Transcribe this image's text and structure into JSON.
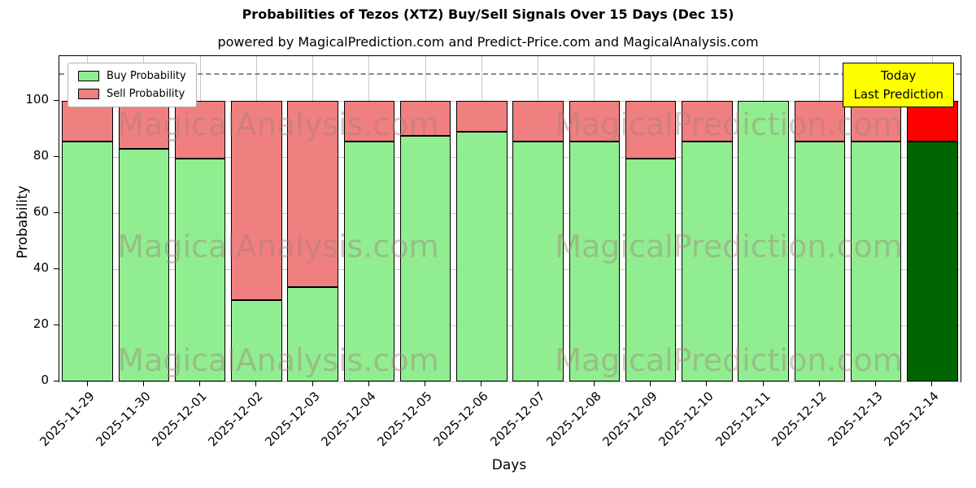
{
  "title": "Probabilities of Tezos (XTZ) Buy/Sell Signals Over 15 Days (Dec 15)",
  "subtitle": "powered by MagicalPrediction.com and Predict-Price.com and MagicalAnalysis.com",
  "watermarks": {
    "left": "MagicalAnalysis.com",
    "right": "MagicalPrediction.com"
  },
  "annotation": {
    "line1": "Today",
    "line2": "Last Prediction",
    "bg_color": "#ffff00"
  },
  "legend": [
    {
      "label": "Buy Probability",
      "color": "#90EE90"
    },
    {
      "label": "Sell Probability",
      "color": "#F08080"
    }
  ],
  "chart_data": {
    "type": "bar",
    "stacked": true,
    "title": "Probabilities of Tezos (XTZ) Buy/Sell Signals Over 15 Days (Dec 15)",
    "xlabel": "Days",
    "ylabel": "Probability",
    "ylim": [
      0,
      116
    ],
    "yticks": [
      0,
      20,
      40,
      60,
      80,
      100
    ],
    "grid": true,
    "dashed_line_y": 110,
    "legend_position": "upper left",
    "categories": [
      "2025-11-29",
      "2025-11-30",
      "2025-12-01",
      "2025-12-02",
      "2025-12-03",
      "2025-12-04",
      "2025-12-05",
      "2025-12-06",
      "2025-12-07",
      "2025-12-08",
      "2025-12-09",
      "2025-12-10",
      "2025-12-11",
      "2025-12-12",
      "2025-12-13",
      "2025-12-14"
    ],
    "series": [
      {
        "name": "Buy Probability",
        "color": "#90EE90",
        "values": [
          85.5,
          83,
          79.5,
          29,
          33.5,
          85.5,
          87.5,
          89,
          85.5,
          85.5,
          79.5,
          85.5,
          100,
          85.5,
          85.5,
          85.5
        ]
      },
      {
        "name": "Sell Probability",
        "color": "#F08080",
        "values": [
          14.5,
          17,
          20.5,
          71,
          66.5,
          14.5,
          12.5,
          11,
          14.5,
          14.5,
          20.5,
          14.5,
          0,
          14.5,
          14.5,
          14.5
        ]
      }
    ],
    "highlight_last_bar": {
      "buy_color": "#006400",
      "sell_color": "#FF0000"
    }
  }
}
